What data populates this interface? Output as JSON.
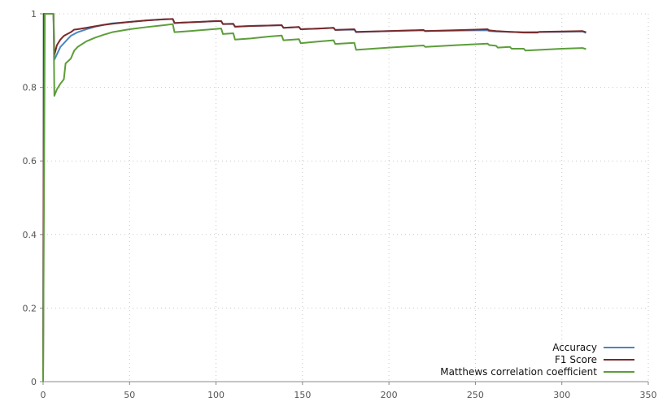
{
  "chart_data": {
    "type": "line",
    "title": "",
    "xlabel": "",
    "ylabel": "",
    "xlim": [
      0,
      350
    ],
    "ylim": [
      0,
      1
    ],
    "x_ticks": [
      0,
      50,
      100,
      150,
      200,
      250,
      300,
      350
    ],
    "y_ticks": [
      0,
      0.2,
      0.4,
      0.6,
      0.8,
      1
    ],
    "x_tick_labels": [
      "0",
      "50",
      "100",
      "150",
      "200",
      "250",
      "300",
      "350"
    ],
    "y_tick_labels": [
      "0",
      "0.2",
      "0.4",
      "0.6",
      "0.8",
      "1"
    ],
    "grid": true,
    "legend_position": "bottom-right",
    "series": [
      {
        "name": "Accuracy",
        "color": "#4a86c0",
        "points": [
          [
            0,
            0
          ],
          [
            0.5,
            1
          ],
          [
            1,
            1
          ],
          [
            3,
            1
          ],
          [
            6,
            1
          ],
          [
            6.5,
            0.875
          ],
          [
            8,
            0.89
          ],
          [
            10,
            0.91
          ],
          [
            13,
            0.925
          ],
          [
            16,
            0.94
          ],
          [
            20,
            0.95
          ],
          [
            25,
            0.958
          ],
          [
            30,
            0.965
          ],
          [
            35,
            0.97
          ],
          [
            40,
            0.974
          ],
          [
            50,
            0.978
          ],
          [
            60,
            0.982
          ],
          [
            70,
            0.985
          ],
          [
            75,
            0.986
          ],
          [
            76,
            0.975
          ],
          [
            80,
            0.976
          ],
          [
            90,
            0.978
          ],
          [
            100,
            0.98
          ],
          [
            103,
            0.98
          ],
          [
            104,
            0.972
          ],
          [
            110,
            0.972
          ],
          [
            111,
            0.965
          ],
          [
            120,
            0.967
          ],
          [
            130,
            0.968
          ],
          [
            138,
            0.969
          ],
          [
            139,
            0.962
          ],
          [
            148,
            0.964
          ],
          [
            149,
            0.958
          ],
          [
            160,
            0.96
          ],
          [
            168,
            0.962
          ],
          [
            169,
            0.956
          ],
          [
            180,
            0.957
          ],
          [
            181,
            0.95
          ],
          [
            200,
            0.953
          ],
          [
            220,
            0.955
          ],
          [
            221,
            0.953
          ],
          [
            250,
            0.955
          ],
          [
            257,
            0.955
          ],
          [
            258,
            0.953
          ],
          [
            262,
            0.952
          ],
          [
            270,
            0.951
          ],
          [
            278,
            0.95
          ],
          [
            300,
            0.951
          ],
          [
            312,
            0.952
          ],
          [
            314,
            0.948
          ]
        ]
      },
      {
        "name": "F1 Score",
        "color": "#7a2a2a",
        "points": [
          [
            0,
            0
          ],
          [
            0.5,
            1
          ],
          [
            1,
            1
          ],
          [
            3,
            1
          ],
          [
            6,
            1
          ],
          [
            6.5,
            0.888
          ],
          [
            8,
            0.915
          ],
          [
            10,
            0.93
          ],
          [
            12,
            0.94
          ],
          [
            14,
            0.945
          ],
          [
            16,
            0.95
          ],
          [
            18,
            0.957
          ],
          [
            20,
            0.958
          ],
          [
            25,
            0.962
          ],
          [
            30,
            0.966
          ],
          [
            35,
            0.97
          ],
          [
            40,
            0.973
          ],
          [
            50,
            0.978
          ],
          [
            60,
            0.982
          ],
          [
            70,
            0.985
          ],
          [
            75,
            0.986
          ],
          [
            76,
            0.975
          ],
          [
            80,
            0.976
          ],
          [
            90,
            0.978
          ],
          [
            100,
            0.98
          ],
          [
            103,
            0.98
          ],
          [
            104,
            0.972
          ],
          [
            110,
            0.973
          ],
          [
            111,
            0.965
          ],
          [
            120,
            0.967
          ],
          [
            130,
            0.968
          ],
          [
            138,
            0.969
          ],
          [
            139,
            0.962
          ],
          [
            148,
            0.964
          ],
          [
            149,
            0.958
          ],
          [
            160,
            0.96
          ],
          [
            168,
            0.962
          ],
          [
            169,
            0.956
          ],
          [
            180,
            0.958
          ],
          [
            181,
            0.951
          ],
          [
            200,
            0.953
          ],
          [
            220,
            0.956
          ],
          [
            221,
            0.953
          ],
          [
            250,
            0.957
          ],
          [
            257,
            0.958
          ],
          [
            258,
            0.955
          ],
          [
            262,
            0.953
          ],
          [
            270,
            0.951
          ],
          [
            278,
            0.949
          ],
          [
            286,
            0.949
          ],
          [
            287,
            0.951
          ],
          [
            300,
            0.952
          ],
          [
            312,
            0.953
          ],
          [
            314,
            0.95
          ]
        ]
      },
      {
        "name": "Matthews correlation coefficient",
        "color": "#5c9e3a",
        "points": [
          [
            0,
            0
          ],
          [
            0.5,
            0.5
          ],
          [
            1,
            1
          ],
          [
            3,
            1
          ],
          [
            6,
            1
          ],
          [
            6.5,
            0.777
          ],
          [
            8,
            0.795
          ],
          [
            10,
            0.81
          ],
          [
            12,
            0.822
          ],
          [
            13,
            0.865
          ],
          [
            16,
            0.878
          ],
          [
            18,
            0.9
          ],
          [
            20,
            0.91
          ],
          [
            25,
            0.925
          ],
          [
            30,
            0.935
          ],
          [
            35,
            0.943
          ],
          [
            40,
            0.95
          ],
          [
            50,
            0.958
          ],
          [
            60,
            0.964
          ],
          [
            70,
            0.969
          ],
          [
            75,
            0.972
          ],
          [
            76,
            0.95
          ],
          [
            85,
            0.953
          ],
          [
            95,
            0.957
          ],
          [
            103,
            0.96
          ],
          [
            104,
            0.945
          ],
          [
            110,
            0.947
          ],
          [
            111,
            0.93
          ],
          [
            120,
            0.933
          ],
          [
            130,
            0.938
          ],
          [
            138,
            0.941
          ],
          [
            139,
            0.928
          ],
          [
            148,
            0.931
          ],
          [
            149,
            0.92
          ],
          [
            160,
            0.925
          ],
          [
            168,
            0.928
          ],
          [
            169,
            0.918
          ],
          [
            180,
            0.921
          ],
          [
            181,
            0.902
          ],
          [
            200,
            0.908
          ],
          [
            220,
            0.914
          ],
          [
            221,
            0.91
          ],
          [
            240,
            0.915
          ],
          [
            257,
            0.919
          ],
          [
            258,
            0.915
          ],
          [
            262,
            0.913
          ],
          [
            263,
            0.908
          ],
          [
            270,
            0.91
          ],
          [
            271,
            0.905
          ],
          [
            278,
            0.905
          ],
          [
            279,
            0.9
          ],
          [
            300,
            0.905
          ],
          [
            312,
            0.907
          ],
          [
            314,
            0.904
          ]
        ]
      }
    ]
  }
}
